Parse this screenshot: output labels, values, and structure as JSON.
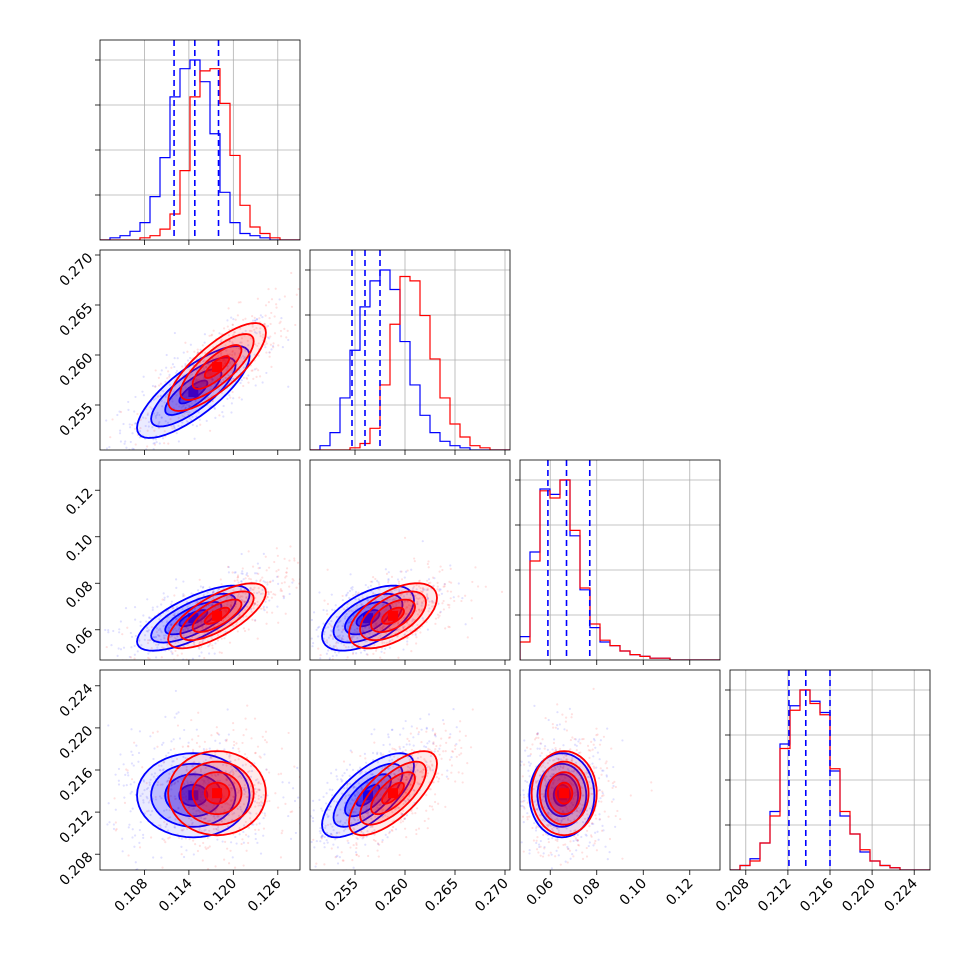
{
  "chart_data": {
    "type": "corner",
    "n_params": 4,
    "series": [
      {
        "name": "",
        "color": "#0000ff",
        "mean": [
          0.1146,
          0.2563,
          0.065,
          0.2136
        ],
        "sd": [
          0.0038,
          0.0023,
          0.007,
          0.002
        ],
        "quantiles": [
          [
            0.112,
            0.1148,
            0.118
          ],
          [
            0.2547,
            0.256,
            0.2575
          ],
          [
            0.059,
            0.067,
            0.077
          ],
          [
            0.2121,
            0.2137,
            0.216
          ]
        ],
        "hist": [
          [
            0,
            1,
            2,
            4,
            8,
            20,
            38,
            66,
            79,
            83,
            73,
            49,
            22,
            8,
            3,
            2,
            1,
            0,
            0,
            0
          ],
          [
            0,
            2,
            8,
            24,
            46,
            66,
            78,
            83,
            74,
            50,
            30,
            16,
            8,
            4,
            2,
            1,
            0,
            0,
            0,
            0
          ],
          [
            13,
            60,
            95,
            92,
            100,
            69,
            39,
            18,
            10,
            8,
            5,
            3,
            2,
            1,
            1,
            0,
            0,
            0,
            0,
            0
          ],
          [
            0,
            2,
            5,
            12,
            26,
            56,
            73,
            80,
            75,
            70,
            44,
            24,
            16,
            8,
            4,
            2,
            1,
            0,
            0,
            0
          ]
        ]
      },
      {
        "name": "",
        "color": "#ff0000",
        "mean": [
          0.1178,
          0.2588,
          0.066,
          0.2138
        ],
        "sd": [
          0.0033,
          0.0022,
          0.007,
          0.002
        ],
        "quantiles": [
          [
            0.112,
            0.1148,
            0.118
          ],
          [
            0.2547,
            0.256,
            0.2575
          ],
          [
            0.059,
            0.067,
            0.077
          ],
          [
            0.2121,
            0.2137,
            0.216
          ]
        ],
        "hist": [
          [
            0,
            0,
            0,
            0,
            1,
            2,
            5,
            12,
            32,
            66,
            78,
            79,
            63,
            39,
            16,
            6,
            3,
            1,
            0,
            0
          ],
          [
            0,
            0,
            0,
            0,
            1,
            3,
            10,
            30,
            58,
            80,
            78,
            62,
            42,
            24,
            12,
            6,
            2,
            1,
            0,
            0
          ],
          [
            10,
            55,
            94,
            90,
            100,
            72,
            40,
            20,
            11,
            8,
            5,
            3,
            2,
            1,
            1,
            0,
            0,
            0,
            0,
            0
          ],
          [
            0,
            2,
            4,
            12,
            24,
            54,
            71,
            80,
            74,
            69,
            45,
            26,
            16,
            9,
            4,
            2,
            1,
            0,
            0,
            0
          ]
        ]
      }
    ],
    "correlations": [
      [
        0,
        1,
        0.78
      ],
      [
        0,
        2,
        0.72
      ],
      [
        1,
        2,
        0.55
      ],
      [
        1,
        3,
        0.7
      ]
    ],
    "ranges": [
      [
        0.102,
        0.129
      ],
      [
        0.2505,
        0.2705
      ],
      [
        0.047,
        0.133
      ],
      [
        0.2065,
        0.2255
      ]
    ],
    "ticks": [
      [
        "0.108",
        "0.114",
        "0.120",
        "0.126"
      ],
      [
        "0.255",
        "0.260",
        "0.265",
        "0.270"
      ],
      [
        "0.06",
        "0.08",
        "0.10",
        "0.12"
      ],
      [
        "0.208",
        "0.212",
        "0.216",
        "0.220",
        "0.224"
      ]
    ],
    "tick_values": [
      [
        0.108,
        0.114,
        0.12,
        0.126
      ],
      [
        0.255,
        0.26,
        0.265,
        0.27
      ],
      [
        0.06,
        0.08,
        0.1,
        0.12
      ],
      [
        0.208,
        0.212,
        0.216,
        0.22,
        0.224
      ]
    ],
    "quantile_line_color": "#0000ff",
    "grid": true
  }
}
